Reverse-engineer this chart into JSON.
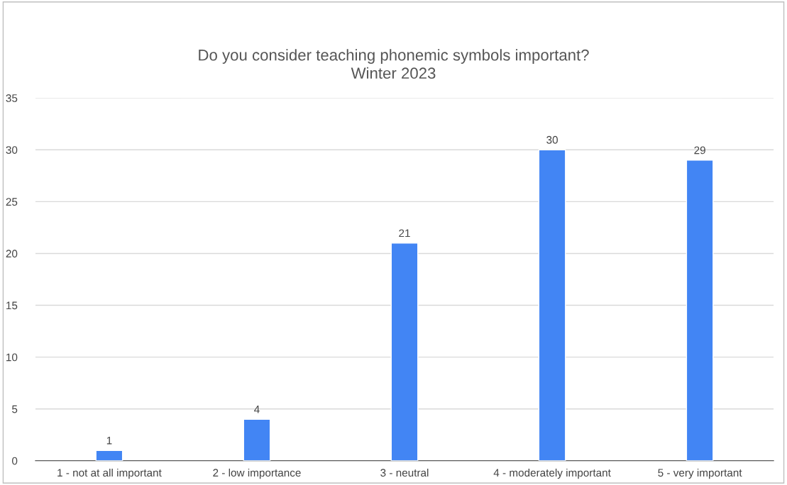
{
  "chart_data": {
    "type": "bar",
    "title": "Do you consider teaching phonemic symbols important?\nWinter 2023",
    "categories": [
      "1 - not at all important",
      "2 - low importance",
      "3 - neutral",
      "4 - moderately important",
      "5 - very important"
    ],
    "values": [
      1,
      4,
      21,
      30,
      29
    ],
    "color": "#4285f4",
    "ylim": [
      0,
      35
    ],
    "yticks": [
      0,
      5,
      10,
      15,
      20,
      25,
      30,
      35
    ],
    "grid": "y",
    "data_labels": true,
    "legend": false
  }
}
